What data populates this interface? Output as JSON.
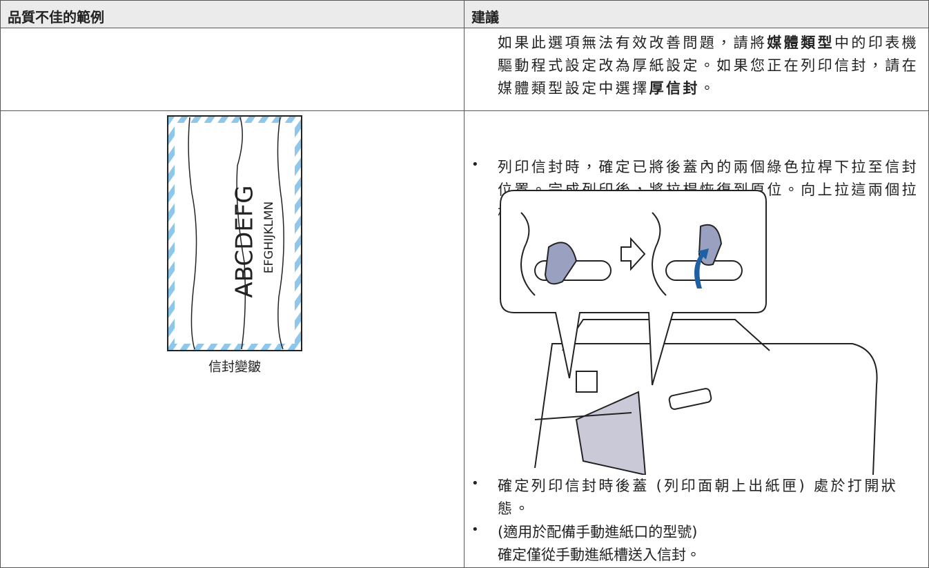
{
  "table": {
    "header": [
      "品質不佳的範例",
      "建議"
    ],
    "rows": [
      {
        "suggestion": [
          "如果此選項無法有效改善問題，請將",
          "媒體類型",
          "中的印表機驅動程式設定改為厚紙設定。如果您正在列印信封，請在媒體類型設定中選擇",
          "厚信封",
          "。"
        ]
      },
      {
        "example": {
          "texts": [
            "ABCDEFG",
            "EFGHIJKLMN"
          ],
          "caption": "信封變皺"
        },
        "bullets": [
          "列印信封時，確定已將後蓋內的兩個綠色拉桿下拉至信封位置。完成列印後，將拉桿恢復到原位。向上拉這兩個拉桿直到其停止。",
          "確定列印信封時後蓋 (列印面朝上出紙匣) 處於打開狀態。",
          "(適用於配備手動進紙口的型號)"
        ],
        "note": "確定僅從手動進紙槽送入信封。"
      }
    ]
  }
}
